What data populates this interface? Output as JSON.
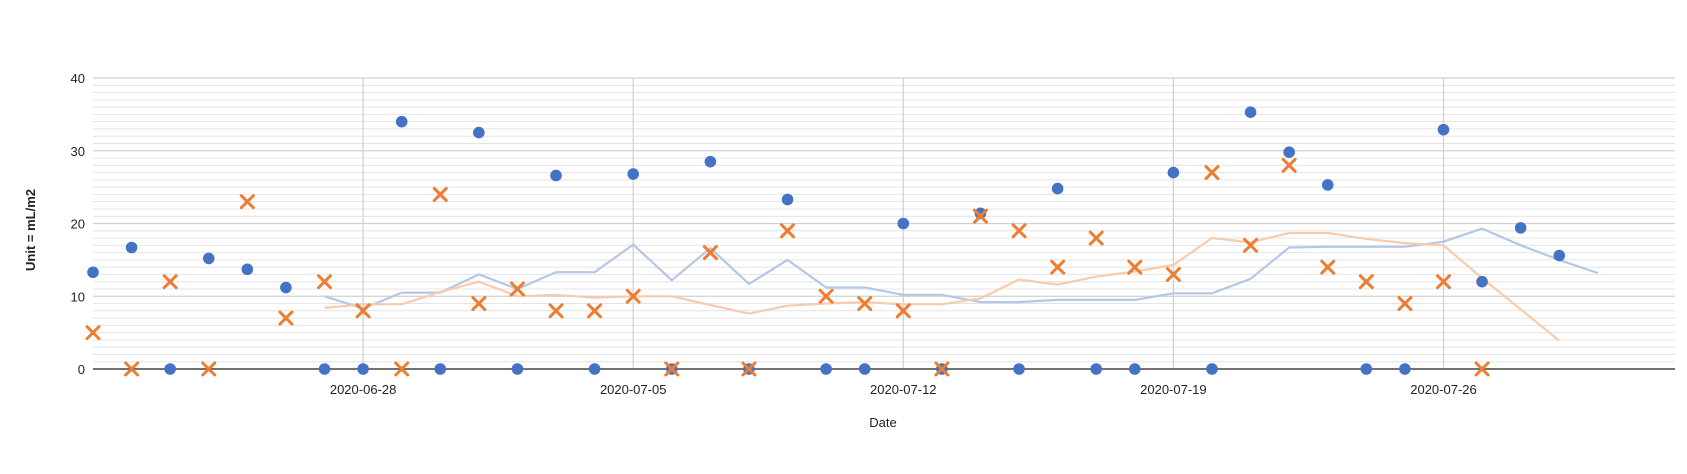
{
  "chart_data": {
    "type": "scatter",
    "title": "",
    "xlabel": "Date",
    "ylabel": "Unit = mL/m2",
    "ylim": [
      0,
      40
    ],
    "yticks": [
      0,
      10,
      20,
      30,
      40
    ],
    "y_minor_step": 1,
    "x_domain_dates": [
      "2020-06-21",
      "2020-08-01"
    ],
    "xticks": [
      "2020-06-28",
      "2020-07-05",
      "2020-07-12",
      "2020-07-19",
      "2020-07-26"
    ],
    "grid": true,
    "legend": "none",
    "series": [
      {
        "kind": "scatter",
        "marker": "circle",
        "color": "#4472C4",
        "points": [
          [
            "2020-06-21",
            13.3
          ],
          [
            "2020-06-22",
            16.7
          ],
          [
            "2020-06-23",
            0
          ],
          [
            "2020-06-24",
            15.2
          ],
          [
            "2020-06-25",
            13.7
          ],
          [
            "2020-06-26",
            11.2
          ],
          [
            "2020-06-27",
            0
          ],
          [
            "2020-06-28",
            0
          ],
          [
            "2020-06-29",
            34.0
          ],
          [
            "2020-06-30",
            0
          ],
          [
            "2020-07-01",
            32.5
          ],
          [
            "2020-07-02",
            0
          ],
          [
            "2020-07-03",
            26.6
          ],
          [
            "2020-07-04",
            0
          ],
          [
            "2020-07-05",
            26.8
          ],
          [
            "2020-07-06",
            0
          ],
          [
            "2020-07-07",
            28.5
          ],
          [
            "2020-07-08",
            0
          ],
          [
            "2020-07-09",
            23.3
          ],
          [
            "2020-07-10",
            0
          ],
          [
            "2020-07-11",
            0
          ],
          [
            "2020-07-12",
            20.0
          ],
          [
            "2020-07-13",
            0
          ],
          [
            "2020-07-14",
            21.4
          ],
          [
            "2020-07-15",
            0
          ],
          [
            "2020-07-16",
            24.8
          ],
          [
            "2020-07-17",
            0
          ],
          [
            "2020-07-18",
            0
          ],
          [
            "2020-07-19",
            27.0
          ],
          [
            "2020-07-20",
            0
          ],
          [
            "2020-07-21",
            35.3
          ],
          [
            "2020-07-22",
            29.8
          ],
          [
            "2020-07-23",
            25.3
          ],
          [
            "2020-07-24",
            0
          ],
          [
            "2020-07-25",
            0
          ],
          [
            "2020-07-26",
            32.9
          ],
          [
            "2020-07-27",
            12.0
          ],
          [
            "2020-07-28",
            19.4
          ],
          [
            "2020-07-29",
            15.6
          ]
        ]
      },
      {
        "kind": "scatter",
        "marker": "x",
        "color": "#ED7D31",
        "points": [
          [
            "2020-06-21",
            5
          ],
          [
            "2020-06-22",
            0
          ],
          [
            "2020-06-23",
            12
          ],
          [
            "2020-06-24",
            0
          ],
          [
            "2020-06-25",
            23
          ],
          [
            "2020-06-26",
            7
          ],
          [
            "2020-06-27",
            12
          ],
          [
            "2020-06-28",
            8
          ],
          [
            "2020-06-29",
            0
          ],
          [
            "2020-06-30",
            24
          ],
          [
            "2020-07-01",
            9
          ],
          [
            "2020-07-02",
            11
          ],
          [
            "2020-07-03",
            8
          ],
          [
            "2020-07-04",
            8
          ],
          [
            "2020-07-05",
            10
          ],
          [
            "2020-07-06",
            0
          ],
          [
            "2020-07-07",
            16
          ],
          [
            "2020-07-08",
            0
          ],
          [
            "2020-07-09",
            19
          ],
          [
            "2020-07-10",
            10
          ],
          [
            "2020-07-11",
            9
          ],
          [
            "2020-07-12",
            8
          ],
          [
            "2020-07-13",
            0
          ],
          [
            "2020-07-14",
            21
          ],
          [
            "2020-07-15",
            19
          ],
          [
            "2020-07-16",
            14
          ],
          [
            "2020-07-17",
            18
          ],
          [
            "2020-07-18",
            14
          ],
          [
            "2020-07-19",
            13
          ],
          [
            "2020-07-20",
            27
          ],
          [
            "2020-07-21",
            17
          ],
          [
            "2020-07-22",
            28
          ],
          [
            "2020-07-23",
            14
          ],
          [
            "2020-07-24",
            12
          ],
          [
            "2020-07-25",
            9
          ],
          [
            "2020-07-26",
            12
          ],
          [
            "2020-07-27",
            0
          ]
        ]
      },
      {
        "kind": "line",
        "color": "#B4C7E7",
        "points": [
          [
            "2020-06-27",
            10.0
          ],
          [
            "2020-06-28",
            8.3
          ],
          [
            "2020-06-29",
            10.5
          ],
          [
            "2020-06-30",
            10.5
          ],
          [
            "2020-07-01",
            13.0
          ],
          [
            "2020-07-02",
            11.0
          ],
          [
            "2020-07-03",
            13.3
          ],
          [
            "2020-07-04",
            13.3
          ],
          [
            "2020-07-05",
            17.1
          ],
          [
            "2020-07-06",
            12.2
          ],
          [
            "2020-07-07",
            16.6
          ],
          [
            "2020-07-08",
            11.7
          ],
          [
            "2020-07-09",
            15.0
          ],
          [
            "2020-07-10",
            11.2
          ],
          [
            "2020-07-11",
            11.2
          ],
          [
            "2020-07-12",
            10.2
          ],
          [
            "2020-07-13",
            10.2
          ],
          [
            "2020-07-14",
            9.2
          ],
          [
            "2020-07-15",
            9.2
          ],
          [
            "2020-07-16",
            9.5
          ],
          [
            "2020-07-17",
            9.5
          ],
          [
            "2020-07-18",
            9.5
          ],
          [
            "2020-07-19",
            10.4
          ],
          [
            "2020-07-20",
            10.4
          ],
          [
            "2020-07-21",
            12.4
          ],
          [
            "2020-07-22",
            16.7
          ],
          [
            "2020-07-23",
            16.8
          ],
          [
            "2020-07-24",
            16.8
          ],
          [
            "2020-07-25",
            16.8
          ],
          [
            "2020-07-26",
            17.5
          ],
          [
            "2020-07-27",
            19.3
          ],
          [
            "2020-07-28",
            17.0
          ],
          [
            "2020-07-29",
            15.0
          ],
          [
            "2020-07-30",
            13.2
          ]
        ]
      },
      {
        "kind": "line",
        "color": "#F8CBAD",
        "points": [
          [
            "2020-06-27",
            8.4
          ],
          [
            "2020-06-28",
            8.9
          ],
          [
            "2020-06-29",
            8.9
          ],
          [
            "2020-06-30",
            10.6
          ],
          [
            "2020-07-01",
            12.0
          ],
          [
            "2020-07-02",
            10.0
          ],
          [
            "2020-07-03",
            10.2
          ],
          [
            "2020-07-04",
            9.8
          ],
          [
            "2020-07-05",
            10.0
          ],
          [
            "2020-07-06",
            10.0
          ],
          [
            "2020-07-07",
            8.8
          ],
          [
            "2020-07-08",
            7.6
          ],
          [
            "2020-07-09",
            8.7
          ],
          [
            "2020-07-10",
            9.0
          ],
          [
            "2020-07-11",
            9.2
          ],
          [
            "2020-07-12",
            8.9
          ],
          [
            "2020-07-13",
            8.9
          ],
          [
            "2020-07-14",
            9.7
          ],
          [
            "2020-07-15",
            12.3
          ],
          [
            "2020-07-16",
            11.6
          ],
          [
            "2020-07-17",
            12.7
          ],
          [
            "2020-07-18",
            13.4
          ],
          [
            "2020-07-19",
            14.3
          ],
          [
            "2020-07-20",
            18.0
          ],
          [
            "2020-07-21",
            17.4
          ],
          [
            "2020-07-22",
            18.7
          ],
          [
            "2020-07-23",
            18.7
          ],
          [
            "2020-07-24",
            17.9
          ],
          [
            "2020-07-25",
            17.3
          ],
          [
            "2020-07-26",
            17.0
          ],
          [
            "2020-07-27",
            12.5
          ],
          [
            "2020-07-28",
            8.2
          ],
          [
            "2020-07-29",
            3.9
          ]
        ]
      }
    ]
  }
}
